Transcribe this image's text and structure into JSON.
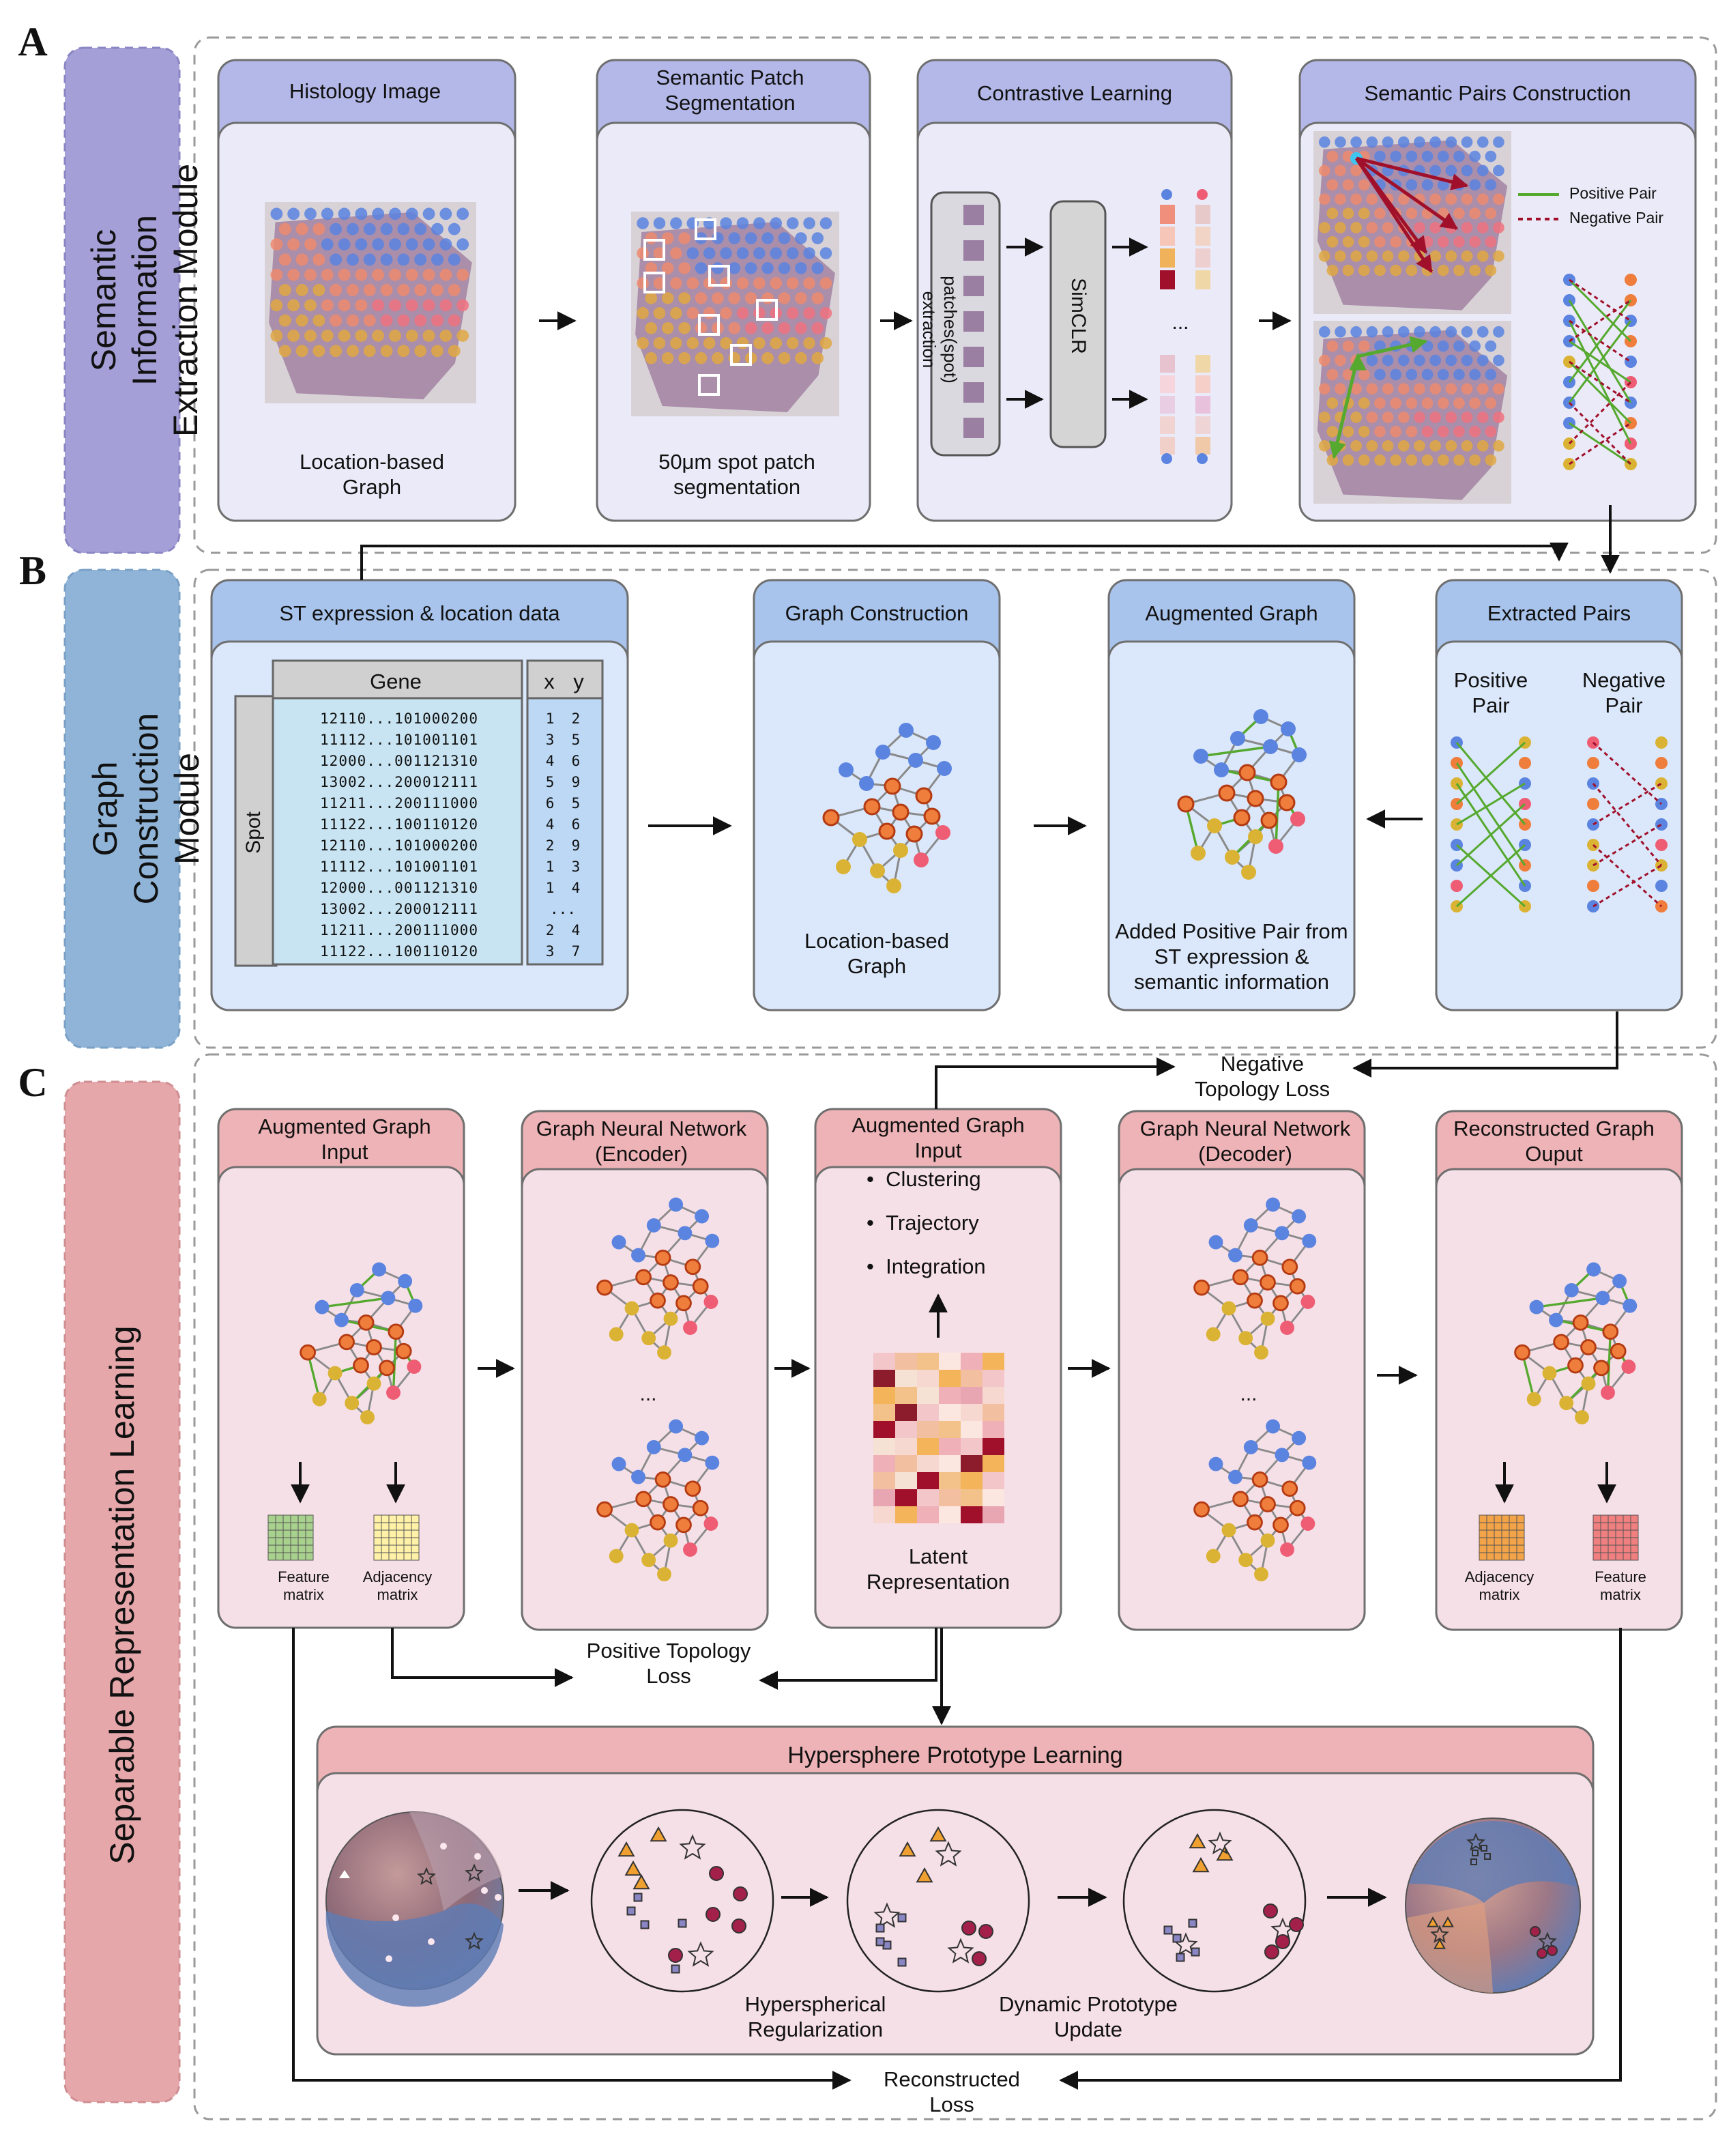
{
  "colors": {
    "moduleA": "#a49fd6",
    "moduleB": "#8fb4d7",
    "moduleC": "#e5a7aa",
    "headerA": "#b3b8e8",
    "headerB": "#a8c4ec",
    "headerC": "#eeb3b6",
    "bodyA": "#ebeaf8",
    "bodyB": "#dbe8fb",
    "bodyC": "#f6e0e8",
    "blue": "#5b84e0",
    "orange": "#ef7d3c",
    "pink": "#ee5d73",
    "yellow": "#dbb334",
    "green": "#55a92e",
    "darkred": "#a0102a"
  },
  "panels": {
    "A": {
      "letter": "A",
      "module_title": "Semantic Information Extraction Module",
      "boxes": {
        "histology": {
          "title": "Histology Image",
          "caption": "Location-based Graph"
        },
        "segmentation": {
          "title": "Semantic Patch Segmentation",
          "caption": "50μm spot patch segmentation"
        },
        "contrastive": {
          "title": "Contrastive Learning",
          "extraction_label": "patches(spot) extraction",
          "model_label": "SimCLR",
          "ellipsis": "..."
        },
        "pairs": {
          "title": "Semantic Pairs Construction",
          "legend_positive": "Positive Pair",
          "legend_negative": "Negative Pair"
        }
      }
    },
    "B": {
      "letter": "B",
      "module_title": "Graph Construction Module",
      "boxes": {
        "st_data": {
          "title": "ST expression & location data",
          "gene_header": "Gene",
          "spot_label": "Spot",
          "x_header": "x",
          "y_header": "y",
          "rows": [
            "12110...101000200",
            "11112...101001101",
            "12000...001121310",
            "13002...200012111",
            "11211...200111000",
            "11122...100110120",
            "12110...101000200",
            "11112...101001101",
            "12000...001121310",
            "13002...200012111",
            "11211...200111000",
            "11122...100110120"
          ],
          "coords": [
            "1  2",
            "3  5",
            "4  6",
            "5  9",
            "6  5",
            "4  6",
            "2  9",
            "1  3",
            "1  4",
            "...",
            "2  4",
            "3  7"
          ]
        },
        "graph_construction": {
          "title": "Graph Construction",
          "caption": "Location-based Graph"
        },
        "augmented_graph": {
          "title": "Augmented Graph",
          "caption": "Added Positive Pair from ST expression & semantic information"
        },
        "extracted_pairs": {
          "title": "Extracted Pairs",
          "positive": "Positive Pair",
          "negative": "Negative Pair"
        }
      }
    },
    "C": {
      "letter": "C",
      "module_title": "Separable Representation Learning",
      "boxes": {
        "input": {
          "title": "Augmented Graph Input",
          "feature": "Feature matrix",
          "adjacency": "Adjacency matrix"
        },
        "encoder": {
          "title": "Graph Neural Network (Encoder)",
          "ellipsis": "..."
        },
        "latent": {
          "title": "Augmented Graph Input",
          "bullets": [
            "Clustering",
            "Trajectory",
            "Integration"
          ],
          "caption": "Latent Representation"
        },
        "decoder": {
          "title": "Graph Neural Network (Decoder)",
          "ellipsis": "..."
        },
        "output": {
          "title": "Reconstructed Graph Ouput",
          "adjacency": "Adjacency matrix",
          "feature": "Feature matrix"
        }
      },
      "losses": {
        "negative_topology": "Negative Topology Loss",
        "positive_topology": "Positive Topology Loss",
        "reconstructed": "Reconstructed Loss"
      },
      "hypersphere": {
        "title": "Hypersphere Prototype Learning",
        "label_regularization": "Hyperspherical Regularization",
        "label_update": "Dynamic Prototype Update"
      }
    }
  }
}
